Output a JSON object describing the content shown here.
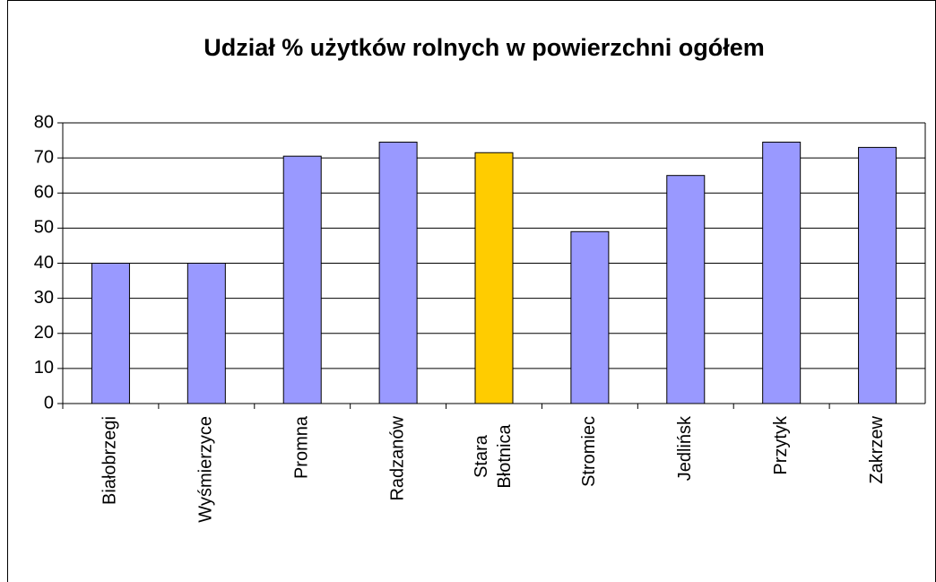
{
  "chart_data": {
    "type": "bar",
    "title": "Udział % użytków rolnych w powierzchni ogółem",
    "categories": [
      "Białobrzegi",
      "Wyśmierzyce",
      "Promna",
      "Radzanów",
      "Stara Błotnica",
      "Stromiec",
      "Jedlińsk",
      "Przytyk",
      "Zakrzew"
    ],
    "values": [
      40,
      40,
      70.5,
      74.5,
      71.5,
      49,
      65,
      74.5,
      73
    ],
    "colors": [
      "#9999ff",
      "#9999ff",
      "#9999ff",
      "#9999ff",
      "#ffcc00",
      "#9999ff",
      "#9999ff",
      "#9999ff",
      "#9999ff"
    ],
    "ylim": [
      0,
      80
    ],
    "yticks": [
      0,
      10,
      20,
      30,
      40,
      50,
      60,
      70,
      80
    ],
    "grid": true
  }
}
